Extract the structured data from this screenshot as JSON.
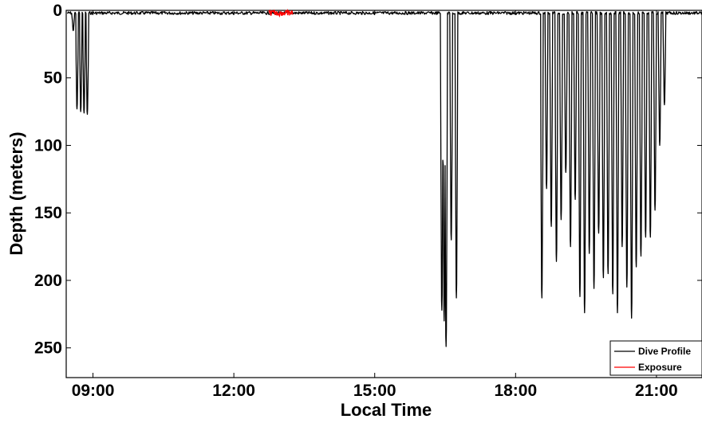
{
  "chart_data": {
    "type": "line",
    "title": "",
    "xlabel": "Local Time",
    "ylabel": "Depth (meters)",
    "x_unit": "hours (local time)",
    "y_axis_inverted": true,
    "xlim": [
      8.43,
      21.97
    ],
    "ylim": [
      0,
      272
    ],
    "xticks": [
      9,
      12,
      15,
      18,
      21
    ],
    "xtick_labels": [
      "09:00",
      "12:00",
      "15:00",
      "18:00",
      "21:00"
    ],
    "yticks": [
      0,
      50,
      100,
      150,
      200,
      250
    ],
    "ytick_labels": [
      "0",
      "50",
      "100",
      "150",
      "200",
      "250"
    ],
    "grid": false,
    "legend_position": "bottom-right",
    "colors": {
      "dive_profile": "#000000",
      "exposure": "#ff0000"
    },
    "series": [
      {
        "name": "Dive Profile",
        "color": "#000000",
        "surface_depth": 2,
        "dives": [
          {
            "t": 8.58,
            "depth": 15
          },
          {
            "t": 8.66,
            "depth": 73
          },
          {
            "t": 8.74,
            "depth": 75
          },
          {
            "t": 8.81,
            "depth": 76
          },
          {
            "t": 8.88,
            "depth": 77
          },
          {
            "t": 16.43,
            "depth": 222
          },
          {
            "t": 16.48,
            "depth": 230
          },
          {
            "t": 16.52,
            "depth": 249
          },
          {
            "t": 16.63,
            "depth": 170
          },
          {
            "t": 16.74,
            "depth": 213
          },
          {
            "t": 18.56,
            "depth": 213
          },
          {
            "t": 18.66,
            "depth": 132
          },
          {
            "t": 18.76,
            "depth": 160
          },
          {
            "t": 18.87,
            "depth": 186
          },
          {
            "t": 18.97,
            "depth": 155
          },
          {
            "t": 19.07,
            "depth": 120
          },
          {
            "t": 19.17,
            "depth": 175
          },
          {
            "t": 19.27,
            "depth": 140
          },
          {
            "t": 19.37,
            "depth": 212
          },
          {
            "t": 19.47,
            "depth": 224
          },
          {
            "t": 19.57,
            "depth": 180
          },
          {
            "t": 19.67,
            "depth": 206
          },
          {
            "t": 19.77,
            "depth": 165
          },
          {
            "t": 19.87,
            "depth": 198
          },
          {
            "t": 19.97,
            "depth": 195
          },
          {
            "t": 20.07,
            "depth": 210
          },
          {
            "t": 20.17,
            "depth": 224
          },
          {
            "t": 20.27,
            "depth": 175
          },
          {
            "t": 20.37,
            "depth": 205
          },
          {
            "t": 20.47,
            "depth": 228
          },
          {
            "t": 20.57,
            "depth": 190
          },
          {
            "t": 20.67,
            "depth": 182
          },
          {
            "t": 20.77,
            "depth": 168
          },
          {
            "t": 20.87,
            "depth": 168
          },
          {
            "t": 20.97,
            "depth": 148
          },
          {
            "t": 21.07,
            "depth": 100
          },
          {
            "t": 21.17,
            "depth": 70
          }
        ]
      },
      {
        "name": "Exposure",
        "color": "#ff0000",
        "x_range": [
          12.75,
          13.25
        ],
        "depth_range": [
          0,
          4
        ]
      }
    ]
  }
}
